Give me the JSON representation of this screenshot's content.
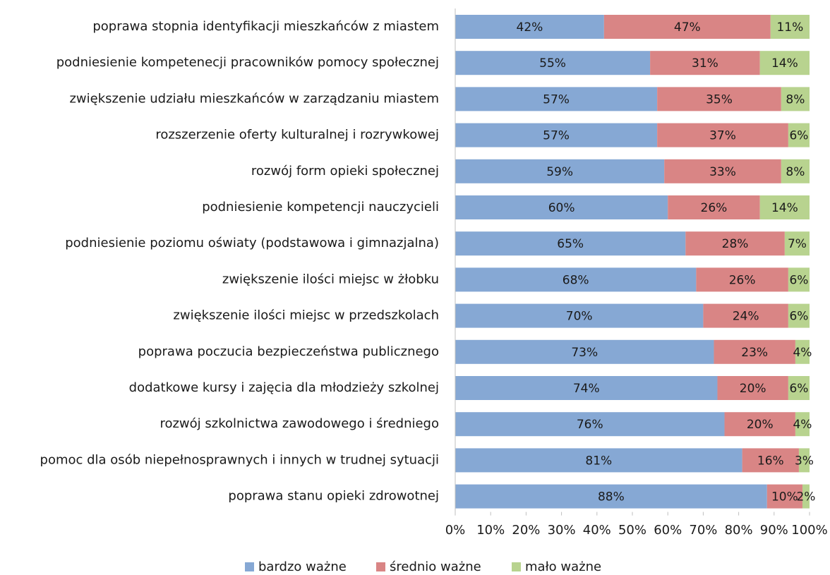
{
  "chart_data": {
    "type": "stacked-bar-horizontal",
    "categories": [
      "poprawa stopnia identyfikacji mieszkańców z miastem",
      "podniesienie kompetenecji pracowników pomocy społecznej",
      "zwiększenie udziału mieszkańców w zarządzaniu miastem",
      "rozszerzenie oferty kulturalnej i rozrywkowej",
      "rozwój form opieki społecznej",
      "podniesienie kompetencji nauczycieli",
      "podniesienie poziomu oświaty (podstawowa i gimnazjalna)",
      "zwiększenie ilości miejsc w żłobku",
      "zwiększenie ilości miejsc w przedszkolach",
      "poprawa poczucia bezpieczeństwa publicznego",
      "dodatkowe kursy i zajęcia dla młodzieży szkolnej",
      "rozwój szkolnictwa zawodowego i średniego",
      "pomoc dla osób niepełnosprawnych i innych w trudnej sytuacji",
      "poprawa stanu opieki zdrowotnej"
    ],
    "series": [
      {
        "name": "bardzo ważne",
        "color": "#86a8d4",
        "values": [
          42,
          55,
          57,
          57,
          59,
          60,
          65,
          68,
          70,
          73,
          74,
          76,
          81,
          88
        ],
        "value_labels": [
          "42%",
          "55%",
          "57%",
          "57%",
          "59%",
          "60%",
          "65%",
          "68%",
          "70%",
          "73%",
          "74%",
          "76%",
          "81%",
          "88%"
        ]
      },
      {
        "name": "średnio ważne",
        "color": "#d98585",
        "values": [
          47,
          31,
          35,
          37,
          33,
          26,
          28,
          26,
          24,
          23,
          20,
          20,
          16,
          10
        ],
        "value_labels": [
          "47%",
          "31%",
          "35%",
          "37%",
          "33%",
          "26%",
          "28%",
          "26%",
          "24%",
          "23%",
          "20%",
          "20%",
          "16%",
          "10%"
        ]
      },
      {
        "name": "mało ważne",
        "color": "#b8d38f",
        "values": [
          11,
          14,
          8,
          6,
          8,
          14,
          7,
          6,
          6,
          4,
          6,
          4,
          3,
          2
        ],
        "value_labels": [
          "11%",
          "14%",
          "8%",
          "6%",
          "8%",
          "14%",
          "7%",
          "6%",
          "6%",
          "4%",
          "6%",
          "4%",
          "3%",
          "2%"
        ]
      }
    ],
    "xlim": [
      0,
      100
    ],
    "xticks": [
      {
        "value": 0,
        "label": "0%"
      },
      {
        "value": 10,
        "label": "10%"
      },
      {
        "value": 20,
        "label": "20%"
      },
      {
        "value": 30,
        "label": "30%"
      },
      {
        "value": 40,
        "label": "40%"
      },
      {
        "value": 50,
        "label": "50%"
      },
      {
        "value": 60,
        "label": "60%"
      },
      {
        "value": 70,
        "label": "70%"
      },
      {
        "value": 80,
        "label": "80%"
      },
      {
        "value": 90,
        "label": "90%"
      },
      {
        "value": 100,
        "label": "100%"
      }
    ],
    "legend": "bottom"
  }
}
